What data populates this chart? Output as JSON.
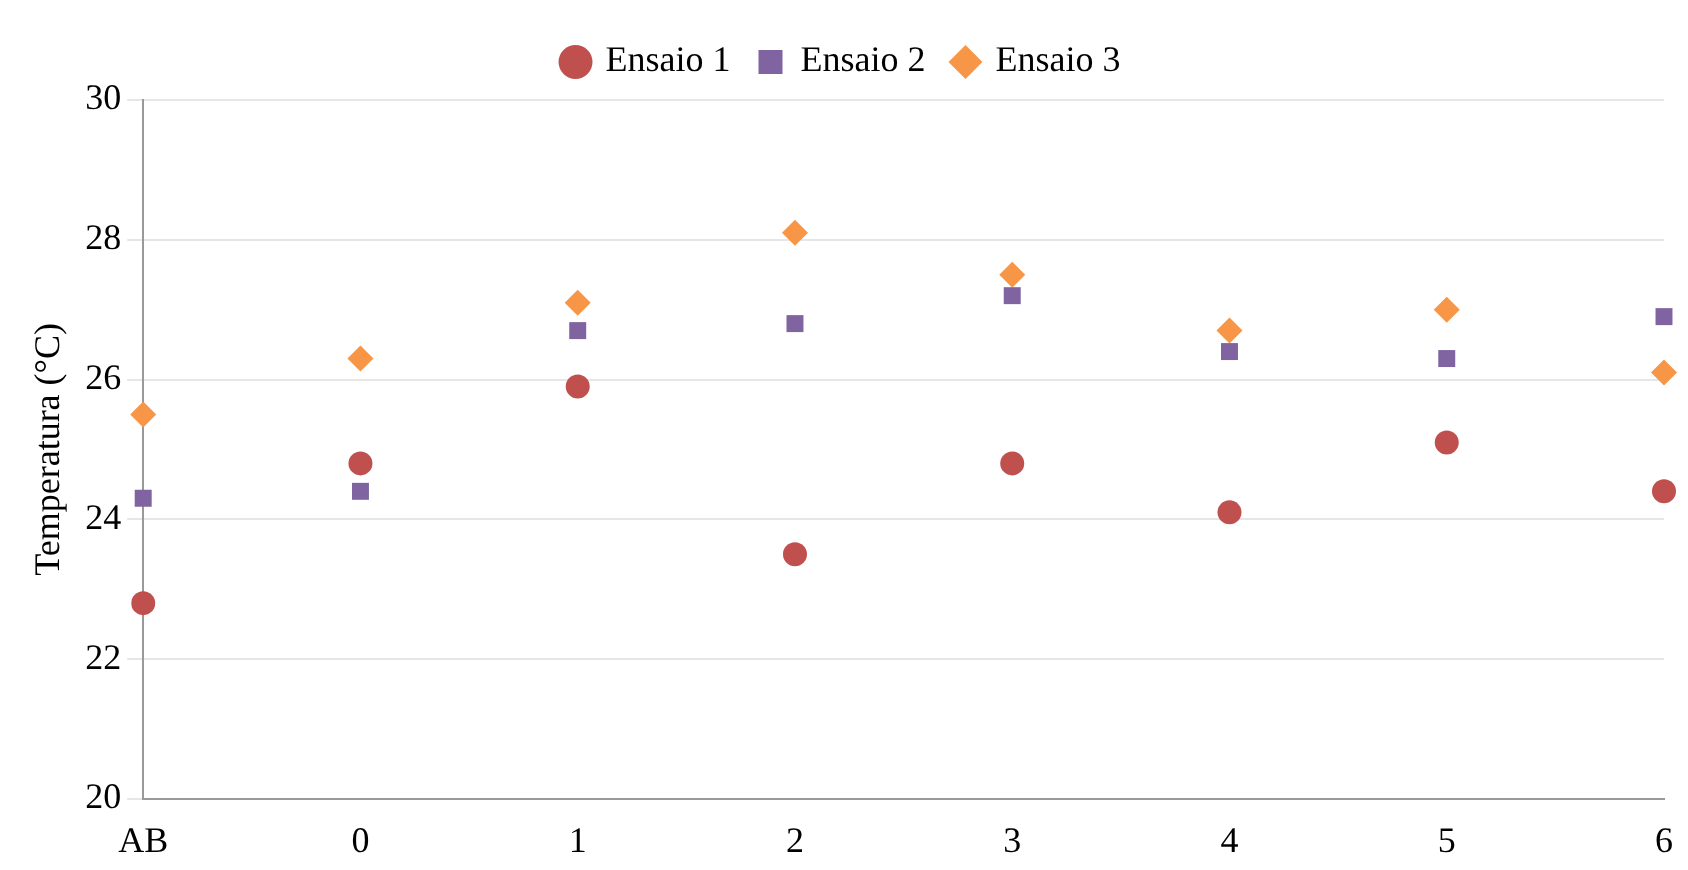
{
  "chart_data": {
    "type": "scatter",
    "ylabel": "Temperatura (°C)",
    "categories": [
      "AB",
      "0",
      "1",
      "2",
      "3",
      "4",
      "5",
      "6"
    ],
    "ylim": [
      20,
      30
    ],
    "yticks": [
      20,
      22,
      24,
      26,
      28,
      30
    ],
    "grid": "y",
    "legend": "top",
    "series": [
      {
        "name": "Ensaio 1",
        "color": "#c0504d",
        "marker": "circle",
        "values": [
          22.8,
          24.8,
          25.9,
          23.5,
          24.8,
          24.1,
          25.1,
          24.4
        ]
      },
      {
        "name": "Ensaio 2",
        "color": "#8064a2",
        "marker": "square",
        "values": [
          24.3,
          24.4,
          26.7,
          26.8,
          27.2,
          26.4,
          26.3,
          26.9
        ]
      },
      {
        "name": "Ensaio 3",
        "color": "#f79646",
        "marker": "diamond",
        "values": [
          25.5,
          26.3,
          27.1,
          28.1,
          27.5,
          26.7,
          27.0,
          26.1
        ]
      }
    ]
  }
}
